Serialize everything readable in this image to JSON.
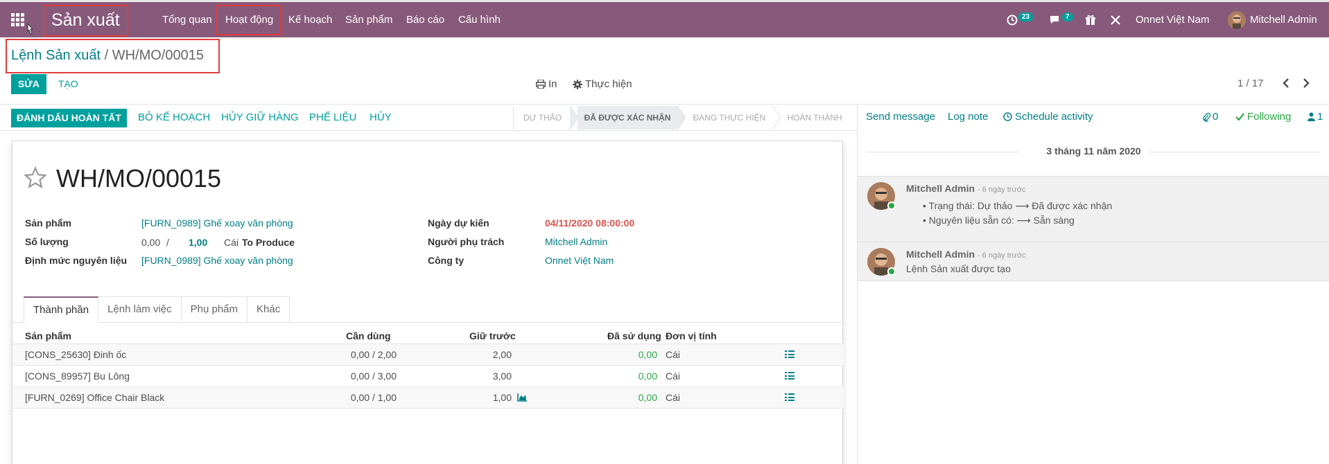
{
  "topbar": {
    "app_title": "Sản xuất",
    "menu": [
      "Tổng quan",
      "Hoạt động",
      "Kế hoạch",
      "Sản phẩm",
      "Báo cáo",
      "Cấu hình"
    ],
    "activity_count": "23",
    "message_count": "7",
    "company": "Onnet Việt Nam",
    "user": "Mitchell Admin"
  },
  "breadcrumb": {
    "parent": "Lệnh Sản xuất",
    "separator": "/",
    "current": "WH/MO/00015"
  },
  "control_panel": {
    "edit_label": "SỬA",
    "create_label": "TẠO",
    "print_label": "In",
    "action_label": "Thực hiện",
    "pager": "1 / 17"
  },
  "statusbar": {
    "buttons": [
      "ĐÁNH DẤU HOÀN TẤT",
      "BỎ KẾ HOẠCH",
      "HỦY GIỮ HÀNG",
      "PHẾ LIỆU",
      "HỦY"
    ],
    "stages": [
      "DỰ THẢO",
      "ĐÃ ĐƯỢC XÁC NHẬN",
      "ĐANG THỰC HIỆN",
      "HOÀN THÀNH"
    ],
    "active_stage": "ĐÃ ĐƯỢC XÁC NHẬN"
  },
  "form": {
    "title": "WH/MO/00015",
    "labels": {
      "product": "Sản phẩm",
      "quantity": "Số lượng",
      "bom": "Định mức nguyên liệu",
      "date_planned": "Ngày dự kiến",
      "responsible": "Người phụ trách",
      "company": "Công ty"
    },
    "product": "[FURN_0989] Ghế xoay văn phòng",
    "qty_done": "0,00",
    "qty_sep": "/",
    "qty_planned": "1,00",
    "uom": "Cái",
    "to_produce": "To Produce",
    "bom": "[FURN_0989] Ghế xoay văn phòng",
    "date_planned": "04/11/2020 08:00:00",
    "responsible": "Mitchell Admin",
    "company": "Onnet Việt Nam"
  },
  "tabs": [
    "Thành phần",
    "Lệnh làm việc",
    "Phụ phẩm",
    "Khác"
  ],
  "table": {
    "headers": [
      "Sản phẩm",
      "Cần dùng",
      "Giữ trước",
      "Đã sử dụng",
      "Đơn vị tính"
    ],
    "rows": [
      {
        "product": "[CONS_25630] Đinh ốc",
        "needed": "0,00 / 2,00",
        "reserved": "2,00",
        "used": "0,00",
        "uom": "Cái"
      },
      {
        "product": "[CONS_89957] Bu Lông",
        "needed": "0,00 / 3,00",
        "reserved": "3,00",
        "used": "0,00",
        "uom": "Cái"
      },
      {
        "product": "[FURN_0269] Office Chair Black",
        "needed": "0,00 / 1,00",
        "reserved": "1,00",
        "used": "0,00",
        "uom": "Cái"
      }
    ]
  },
  "chatter": {
    "send_message": "Send message",
    "log_note": "Log note",
    "schedule_activity": "Schedule activity",
    "attachments": "0",
    "following": "Following",
    "followers": "1",
    "date": "3 tháng 11 năm 2020",
    "messages": [
      {
        "author": "Mitchell Admin",
        "time": "- 6 ngày trước",
        "lines": [
          "Trạng thái: Dự thảo ⟶ Đã được xác nhận",
          "Nguyên liệu sẵn có: ⟶ Sẵn sàng"
        ]
      },
      {
        "author": "Mitchell Admin",
        "time": "- 6 ngày trước",
        "lines": [
          "Lệnh Sản xuất được tạo"
        ]
      }
    ]
  },
  "colors": {
    "brand": "#875a7b",
    "primary": "#00a09d",
    "link": "#017e84",
    "highlight": "#e03c3c"
  },
  "icons": [
    "apps-grid-icon",
    "activity-clock-icon",
    "chat-bubble-icon",
    "gift-icon",
    "tools-icon",
    "print-icon",
    "gear-icon",
    "star-icon",
    "list-icon",
    "forecast-chart-icon",
    "paperclip-icon",
    "check-icon",
    "user-icon"
  ]
}
